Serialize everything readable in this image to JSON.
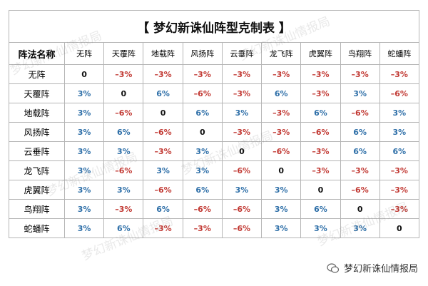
{
  "title": "【 梦幻新诛仙阵型克制表 】",
  "table": {
    "corner": "阵法名称",
    "columns": [
      "无阵",
      "天覆阵",
      "地载阵",
      "风扬阵",
      "云垂阵",
      "龙飞阵",
      "虎翼阵",
      "鸟翔阵",
      "蛇蟠阵"
    ],
    "rows": [
      {
        "name": "无阵",
        "cells": [
          "0",
          "–3%",
          "–3%",
          "–3%",
          "–3%",
          "–3%",
          "–3%",
          "–3%",
          "–3%"
        ]
      },
      {
        "name": "天覆阵",
        "cells": [
          "3%",
          "0",
          "6%",
          "–6%",
          "–3%",
          "6%",
          "–3%",
          "3%",
          "–6%"
        ]
      },
      {
        "name": "地载阵",
        "cells": [
          "3%",
          "–6%",
          "0",
          "6%",
          "3%",
          "–3%",
          "6%",
          "–6%",
          "3%"
        ]
      },
      {
        "name": "风扬阵",
        "cells": [
          "3%",
          "6%",
          "–6%",
          "0",
          "–3%",
          "–3%",
          "–6%",
          "6%",
          "3%"
        ]
      },
      {
        "name": "云垂阵",
        "cells": [
          "3%",
          "3%",
          "–3%",
          "3%",
          "0",
          "–6%",
          "–3%",
          "6%",
          "6%"
        ]
      },
      {
        "name": "龙飞阵",
        "cells": [
          "3%",
          "–6%",
          "3%",
          "3%",
          "–6%",
          "0",
          "–3%",
          "–3%",
          "–3%"
        ]
      },
      {
        "name": "虎翼阵",
        "cells": [
          "3%",
          "3%",
          "–6%",
          "6%",
          "3%",
          "3%",
          "0",
          "–6%",
          "–3%"
        ]
      },
      {
        "name": "鸟翔阵",
        "cells": [
          "3%",
          "–3%",
          "6%",
          "–6%",
          "–6%",
          "3%",
          "6%",
          "0",
          "–3%"
        ]
      },
      {
        "name": "蛇蟠阵",
        "cells": [
          "3%",
          "6%",
          "–3%",
          "–3%",
          "–6%",
          "3%",
          "3%",
          "3%",
          "0"
        ]
      }
    ]
  },
  "watermark": "梦幻新诛仙情报局",
  "footer": "梦幻新诛仙情报局"
}
